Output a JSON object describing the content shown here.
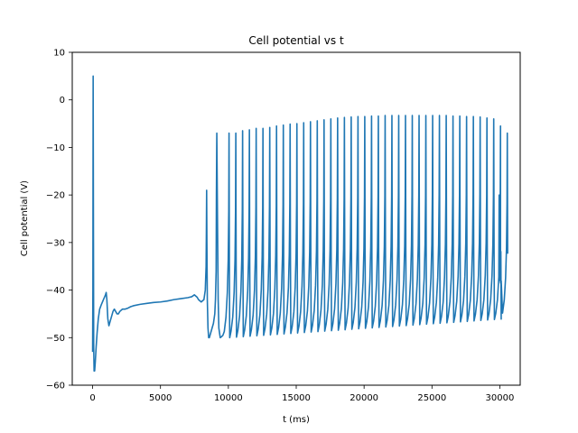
{
  "chart_data": {
    "type": "line",
    "title": "Cell potential vs t",
    "xlabel": "t (ms)",
    "ylabel": "Cell potential (V)",
    "xlim": [
      -1500,
      31500
    ],
    "ylim": [
      -60,
      10
    ],
    "xticks": [
      0,
      5000,
      10000,
      15000,
      20000,
      25000,
      30000
    ],
    "yticks": [
      -60,
      -50,
      -40,
      -30,
      -20,
      -10,
      0,
      10
    ],
    "grid": false,
    "legend": "none",
    "series": [
      {
        "color": "#1f77b4",
        "x": [
          0,
          20,
          40,
          60,
          80,
          110,
          150,
          200,
          260,
          330,
          420,
          520,
          650,
          800,
          950,
          1000,
          1050,
          1120,
          1200,
          1300,
          1400,
          1500,
          1600,
          1700,
          1800,
          1900,
          2000,
          2200,
          2400,
          2600,
          2800,
          3000,
          3500,
          4000,
          4500,
          5000,
          5500,
          6000,
          6500,
          7000,
          7300,
          7500,
          7700,
          7800,
          8000,
          8200,
          8300,
          8360,
          8380,
          8400,
          8420,
          8450,
          8500,
          8550,
          8600,
          8700,
          8800,
          8900,
          9000,
          9050,
          9100,
          9120,
          9150,
          9200,
          9250,
          9300,
          9400,
          9500,
          9600
        ],
        "y": [
          -53,
          -40,
          5,
          -25,
          -52,
          -57,
          -57,
          -55,
          -52,
          -49,
          -46,
          -44,
          -43,
          -42,
          -41,
          -40.5,
          -42,
          -46,
          -47.5,
          -46.5,
          -45.5,
          -44.5,
          -44,
          -44.5,
          -45,
          -45,
          -44.5,
          -44,
          -44,
          -43.8,
          -43.5,
          -43.3,
          -43,
          -42.8,
          -42.6,
          -42.5,
          -42.3,
          -42,
          -41.8,
          -41.6,
          -41.4,
          -41,
          -41.5,
          -42,
          -42.5,
          -42,
          -40,
          -35,
          -28,
          -19,
          -30,
          -42,
          -48,
          -50,
          -50,
          -49,
          -48,
          -47,
          -45,
          -42,
          -36,
          -20,
          -7,
          -25,
          -42,
          -48,
          -50,
          -49.8,
          -49.5
        ]
      }
    ],
    "spike_train": {
      "first_spike": 9600,
      "last_spike": 29900,
      "interval": 500,
      "trough_start": -50,
      "trough_end": -46,
      "peaks": [
        -7,
        -7,
        -6.5,
        -6.3,
        -6,
        -6,
        -5.8,
        -5.5,
        -5.3,
        -5.1,
        -5,
        -4.8,
        -4.6,
        -4.4,
        -4.2,
        -4,
        -3.8,
        -3.7,
        -3.6,
        -3.5,
        -3.5,
        -3.4,
        -3.4,
        -3.3,
        -3.3,
        -3.3,
        -3.3,
        -3.3,
        -3.3,
        -3.3,
        -3.3,
        -3.3,
        -3.3,
        -3.4,
        -3.4,
        -3.5,
        -3.5,
        -3.6,
        -3.8,
        -4,
        -5.5,
        -7
      ],
      "tail": [
        [
          29950,
          -20
        ],
        [
          30000,
          -38
        ],
        [
          30050,
          -38.5
        ],
        [
          30100,
          -38
        ]
      ]
    }
  }
}
